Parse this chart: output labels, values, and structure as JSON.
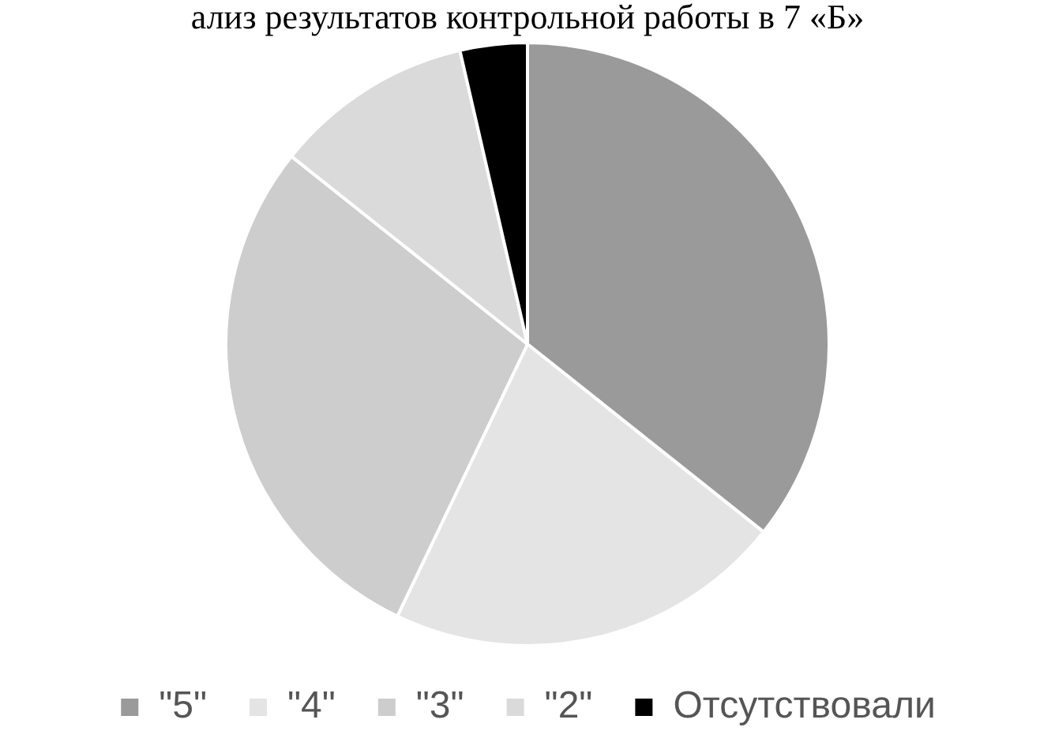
{
  "chart_data": {
    "type": "pie",
    "title": "ализ результатов контрольной работы в 7 «Б»",
    "categories": [
      "\"5\"",
      "\"4\"",
      "\"3\"",
      "\"2\"",
      "Отсутствовали"
    ],
    "values": [
      35.7,
      21.4,
      28.6,
      10.7,
      3.6
    ],
    "colors": [
      "#9a9a9a",
      "#e4e4e4",
      "#cdcdcd",
      "#dadada",
      "#000000"
    ],
    "legend": "bottom"
  }
}
